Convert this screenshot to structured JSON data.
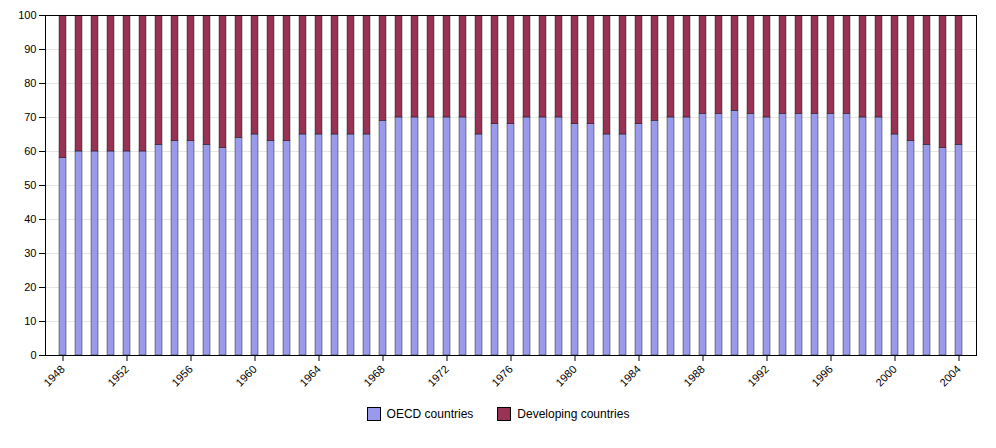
{
  "chart_data": {
    "type": "bar",
    "stacked": true,
    "grid": true,
    "legend": "bottom",
    "categories": [
      "1948",
      null,
      null,
      null,
      "1952",
      null,
      null,
      null,
      "1956",
      null,
      null,
      null,
      "1960",
      null,
      null,
      null,
      "1964",
      null,
      null,
      null,
      "1968",
      null,
      null,
      null,
      "1972",
      null,
      null,
      null,
      "1976",
      null,
      null,
      null,
      "1980",
      null,
      null,
      null,
      "1984",
      null,
      null,
      null,
      "1988",
      null,
      null,
      null,
      "1992",
      null,
      null,
      null,
      "1996",
      null,
      null,
      null,
      "2000",
      null,
      null,
      null,
      "2004"
    ],
    "series": [
      {
        "name": "OECD countries",
        "color": "#9999EE",
        "values": [
          58,
          60,
          60,
          60,
          60,
          60,
          62,
          63,
          63,
          62,
          61,
          64,
          65,
          63,
          63,
          65,
          65,
          65,
          65,
          65,
          69,
          70,
          70,
          70,
          70,
          70,
          65,
          68,
          68,
          70,
          70,
          70,
          68,
          68,
          65,
          65,
          68,
          69,
          70,
          70,
          71,
          71,
          72,
          71,
          70,
          71,
          71,
          71,
          71,
          71,
          70,
          70,
          65,
          63,
          62,
          61,
          62
        ]
      },
      {
        "name": "Developing countries",
        "color": "#993355",
        "values": [
          42,
          40,
          40,
          40,
          40,
          40,
          38,
          37,
          37,
          38,
          39,
          36,
          35,
          37,
          37,
          35,
          35,
          35,
          35,
          35,
          31,
          30,
          30,
          30,
          30,
          30,
          35,
          32,
          32,
          30,
          30,
          30,
          32,
          32,
          35,
          35,
          32,
          31,
          30,
          30,
          29,
          29,
          28,
          29,
          30,
          29,
          29,
          29,
          29,
          29,
          30,
          30,
          35,
          37,
          38,
          39,
          38
        ]
      }
    ],
    "ylim": [
      0,
      100
    ],
    "yticks": [
      0,
      10,
      20,
      30,
      40,
      50,
      60,
      70,
      80,
      90,
      100
    ]
  }
}
